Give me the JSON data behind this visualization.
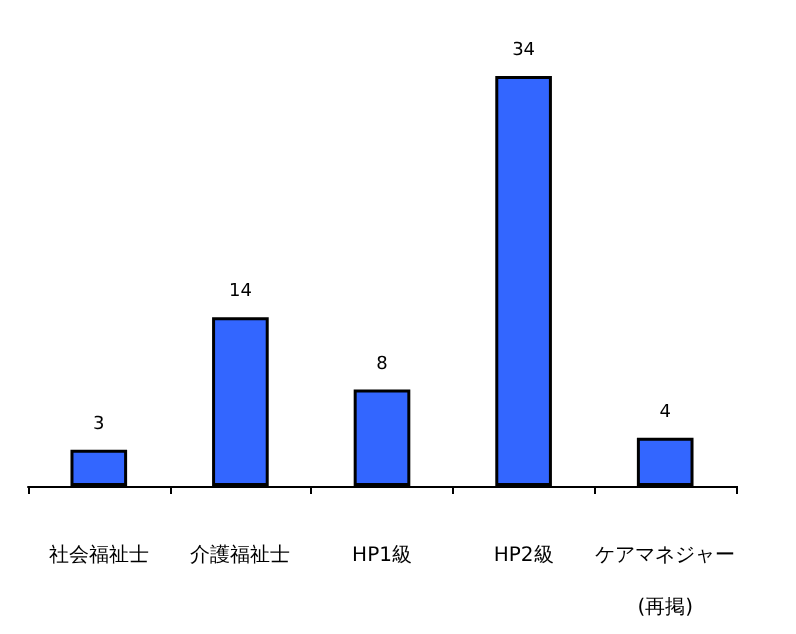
{
  "chart_data": {
    "type": "bar",
    "categories": [
      "社会福祉士",
      "介護福祉士",
      "HP1級",
      "HP2級",
      "ケアマネジャー\n(再掲)"
    ],
    "values": [
      3,
      14,
      8,
      34,
      4
    ],
    "color": "#3366ff",
    "data_labels": true
  }
}
